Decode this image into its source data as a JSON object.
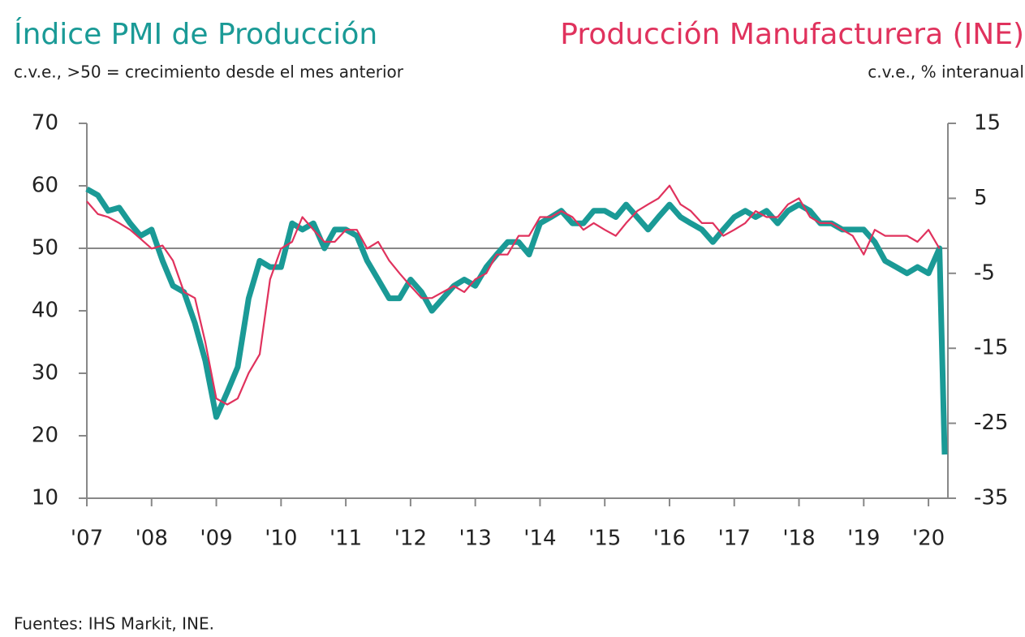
{
  "chart_data": {
    "type": "line",
    "ylabel": "c.v.e., >50 = crecimiento desde el mes anterior",
    "y2label": "c.v.e., % interanual",
    "source": "Fuentes: IHS Markit, INE.",
    "xlim": [
      2007,
      2020.3
    ],
    "xticks": [
      {
        "value": 2007,
        "label": "'07"
      },
      {
        "value": 2008,
        "label": "'08"
      },
      {
        "value": 2009,
        "label": "'09"
      },
      {
        "value": 2010,
        "label": "'10"
      },
      {
        "value": 2011,
        "label": "'11"
      },
      {
        "value": 2012,
        "label": "'12"
      },
      {
        "value": 2013,
        "label": "'13"
      },
      {
        "value": 2014,
        "label": "'14"
      },
      {
        "value": 2015,
        "label": "'15"
      },
      {
        "value": 2016,
        "label": "'16"
      },
      {
        "value": 2017,
        "label": "'17"
      },
      {
        "value": 2018,
        "label": "'18"
      },
      {
        "value": 2019,
        "label": "'19"
      },
      {
        "value": 2020,
        "label": "'20"
      }
    ],
    "ylim": [
      10,
      70
    ],
    "yticks": [
      10,
      20,
      30,
      40,
      50,
      60,
      70
    ],
    "y2lim": [
      -35,
      15
    ],
    "y2ticks": [
      -35,
      -25,
      -15,
      -5,
      5,
      15
    ],
    "reference_line": 50,
    "x": [
      2007,
      2007.17,
      2007.33,
      2007.5,
      2007.67,
      2007.83,
      2008,
      2008.17,
      2008.33,
      2008.5,
      2008.67,
      2008.83,
      2009,
      2009.17,
      2009.33,
      2009.5,
      2009.67,
      2009.83,
      2010,
      2010.17,
      2010.33,
      2010.5,
      2010.67,
      2010.83,
      2011,
      2011.17,
      2011.33,
      2011.5,
      2011.67,
      2011.83,
      2012,
      2012.17,
      2012.33,
      2012.5,
      2012.67,
      2012.83,
      2013,
      2013.17,
      2013.33,
      2013.5,
      2013.67,
      2013.83,
      2014,
      2014.17,
      2014.33,
      2014.5,
      2014.67,
      2014.83,
      2015,
      2015.17,
      2015.33,
      2015.5,
      2015.67,
      2015.83,
      2016,
      2016.17,
      2016.33,
      2016.5,
      2016.67,
      2016.83,
      2017,
      2017.17,
      2017.33,
      2017.5,
      2017.67,
      2017.83,
      2018,
      2018.17,
      2018.33,
      2018.5,
      2018.67,
      2018.83,
      2019,
      2019.17,
      2019.33,
      2019.5,
      2019.67,
      2019.83,
      2020,
      2020.17,
      2020.25
    ],
    "series": [
      {
        "name": "Índice PMI de Producción",
        "color": "#1a9a96",
        "values": [
          59.5,
          58.5,
          56,
          56.5,
          54,
          52,
          53,
          48,
          44,
          43,
          38,
          32,
          23,
          27,
          31,
          42,
          48,
          47,
          47,
          54,
          53,
          54,
          50,
          53,
          53,
          52,
          48,
          45,
          42,
          42,
          45,
          43,
          40,
          42,
          44,
          45,
          44,
          47,
          49,
          51,
          51,
          49,
          54,
          55,
          56,
          54,
          54,
          56,
          56,
          55,
          57,
          55,
          53,
          55,
          57,
          55,
          54,
          53,
          51,
          53,
          55,
          56,
          55,
          56,
          54,
          56,
          57,
          56,
          54,
          54,
          53,
          53,
          53,
          51,
          48,
          47,
          46,
          47,
          46,
          50,
          17
        ]
      },
      {
        "name": "Producción Manufacturera (INE)",
        "color": "#e0325d",
        "axis": "y2",
        "values": [
          4.6,
          2.9,
          2.5,
          1.7,
          0.8,
          -0.4,
          -1.7,
          -1.3,
          -3.3,
          -7.5,
          -8.3,
          -14.2,
          -21.7,
          -22.5,
          -21.7,
          -18.3,
          -15.8,
          -5.8,
          -1.7,
          -0.8,
          2.5,
          0.8,
          -0.8,
          -0.8,
          0.8,
          0.8,
          -1.7,
          -0.8,
          -3.3,
          -5,
          -6.7,
          -8.3,
          -8.3,
          -7.5,
          -6.7,
          -7.5,
          -5.8,
          -5,
          -2.5,
          -2.5,
          0,
          0,
          2.5,
          2.5,
          3.3,
          2.5,
          0.8,
          1.7,
          0.8,
          0,
          1.7,
          3.3,
          4.2,
          5,
          6.7,
          4.2,
          3.3,
          1.7,
          1.7,
          0,
          0.8,
          1.7,
          3.3,
          2.5,
          2.5,
          4.2,
          5,
          2.5,
          1.7,
          1.7,
          0.8,
          0,
          -2.5,
          0.8,
          0,
          0,
          0,
          -0.8,
          0.8,
          -1.7,
          null
        ]
      }
    ]
  }
}
